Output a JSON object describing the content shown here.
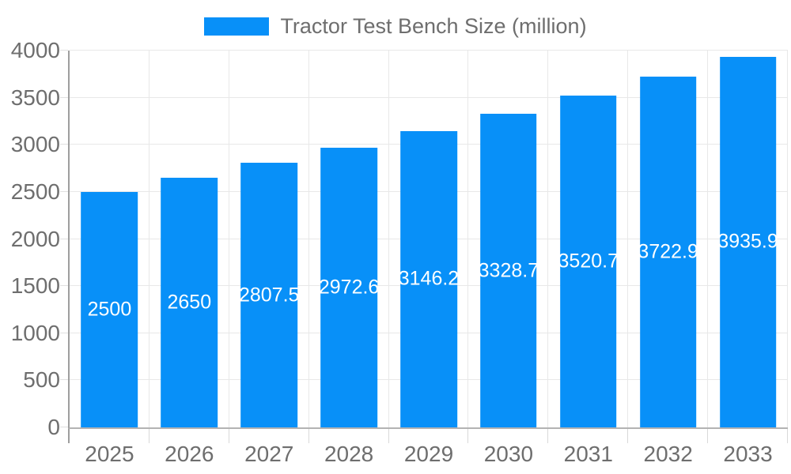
{
  "legend": {
    "label": "Tractor Test Bench Size (million)"
  },
  "chart_data": {
    "type": "bar",
    "title": "Tractor Test Bench Size (million)",
    "xlabel": "",
    "ylabel": "",
    "categories": [
      "2025",
      "2026",
      "2027",
      "2028",
      "2029",
      "2030",
      "2031",
      "2032",
      "2033"
    ],
    "values": [
      2500,
      2650,
      2807.5,
      2972.6,
      3146.2,
      3328.7,
      3520.7,
      3722.9,
      3935.9
    ],
    "value_labels": [
      "2500",
      "2650",
      "2807.5",
      "2972.6",
      "3146.2",
      "3328.7",
      "3520.7",
      "3722.9",
      "3935.9"
    ],
    "ylim": [
      0,
      4000
    ],
    "ytick_step": 500,
    "ytick_labels": [
      "0",
      "500",
      "1000",
      "1500",
      "2000",
      "2500",
      "3000",
      "3500",
      "4000"
    ],
    "grid": true,
    "legend_position": "top-center",
    "colors": {
      "bar": "#0890f8",
      "value_label": "#ffffff",
      "grid_line": "#e8e8e8",
      "axis_line_y": "#9e9e9e",
      "axis_line_x": "#b3b3b3",
      "tick": "#d9d9d9",
      "axis_text": "#6e6e6e",
      "legend_text": "#6e6e6e",
      "background": "#ffffff"
    }
  }
}
